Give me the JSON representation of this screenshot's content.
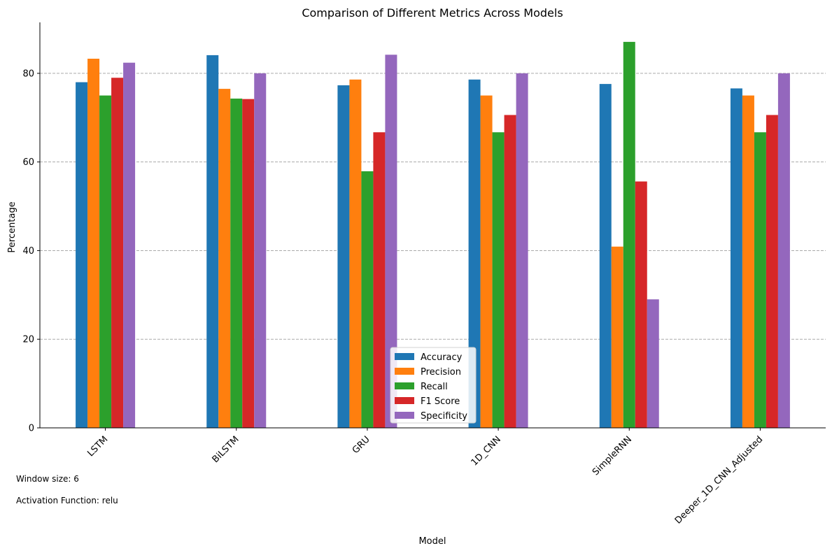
{
  "chart_data": {
    "type": "bar",
    "title": "Comparison of Different Metrics Across Models",
    "xlabel": "Model",
    "ylabel": "Percentage",
    "categories": [
      "LSTM",
      "BiLSTM",
      "GRU",
      "1D_CNN",
      "SimpleRNN",
      "Deeper_1D_CNN_Adjusted"
    ],
    "series": [
      {
        "name": "Accuracy",
        "color": "#1f77b4",
        "values": [
          78.0,
          84.1,
          77.3,
          78.6,
          77.6,
          76.6
        ]
      },
      {
        "name": "Precision",
        "color": "#ff7f0e",
        "values": [
          83.3,
          76.5,
          78.6,
          75.0,
          40.9,
          75.0
        ]
      },
      {
        "name": "Recall",
        "color": "#2ca02c",
        "values": [
          75.0,
          74.3,
          57.9,
          66.7,
          87.1,
          66.7
        ]
      },
      {
        "name": "F1 Score",
        "color": "#d62728",
        "values": [
          79.0,
          74.2,
          66.7,
          70.6,
          55.6,
          70.6
        ]
      },
      {
        "name": "Specificity",
        "color": "#9467bd",
        "values": [
          82.4,
          80.0,
          84.2,
          80.0,
          29.0,
          80.0
        ]
      }
    ],
    "yticks": [
      0,
      20,
      40,
      60,
      80
    ],
    "ylim": [
      0,
      91.5
    ],
    "grid": "horizontal dashed",
    "legend_position": "lower center"
  },
  "notes": {
    "window_size": "Window size: 6",
    "activation": "Activation Function: relu"
  }
}
